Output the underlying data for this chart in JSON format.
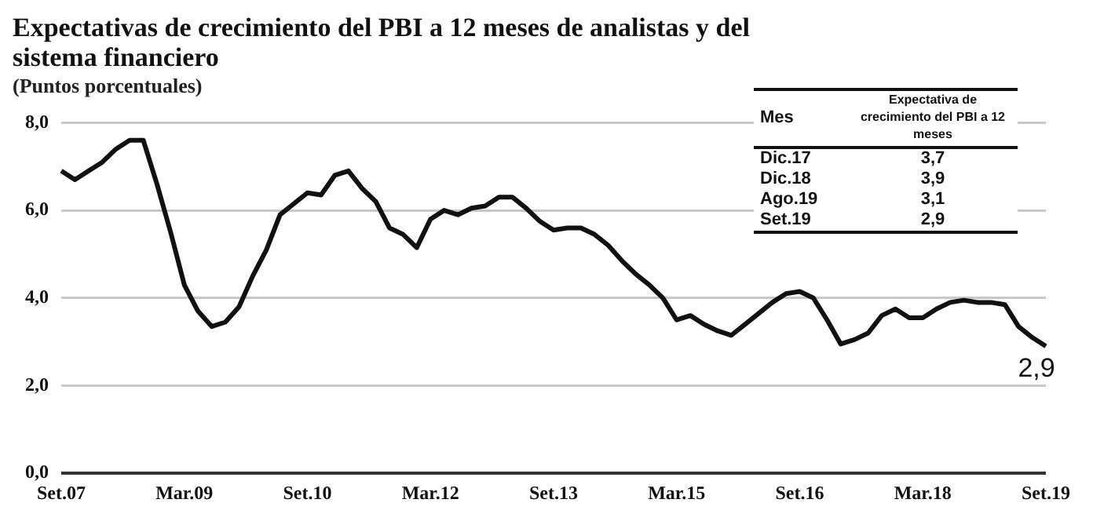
{
  "chart_data": {
    "type": "line",
    "title": "Expectativas de crecimiento del PBI a 12 meses de analistas y del sistema financiero",
    "subtitle": "(Puntos porcentuales)",
    "categories": [
      "Set.07",
      null,
      null,
      null,
      null,
      null,
      null,
      null,
      null,
      "Mar.09",
      null,
      null,
      null,
      null,
      null,
      null,
      null,
      null,
      "Set.10",
      null,
      null,
      null,
      null,
      null,
      null,
      null,
      null,
      "Mar.12",
      null,
      null,
      null,
      null,
      null,
      null,
      null,
      null,
      "Set.13",
      null,
      null,
      null,
      null,
      null,
      null,
      null,
      null,
      "Mar.15",
      null,
      null,
      null,
      null,
      null,
      null,
      null,
      null,
      "Set.16",
      null,
      null,
      null,
      null,
      null,
      null,
      null,
      null,
      "Mar.18",
      null,
      null,
      null,
      null,
      null,
      null,
      null,
      null,
      "Set.19"
    ],
    "series": [
      {
        "color": "#111111",
        "values": [
          6.9,
          6.7,
          6.9,
          7.1,
          7.4,
          7.6,
          7.6,
          6.6,
          5.5,
          4.3,
          3.7,
          3.35,
          3.45,
          3.8,
          4.5,
          5.1,
          5.9,
          6.15,
          6.4,
          6.35,
          6.8,
          6.9,
          6.5,
          6.2,
          5.6,
          5.45,
          5.15,
          5.8,
          6.0,
          5.9,
          6.05,
          6.1,
          6.3,
          6.3,
          6.05,
          5.75,
          5.55,
          5.6,
          5.6,
          5.45,
          5.2,
          4.85,
          4.55,
          4.3,
          4.0,
          3.5,
          3.6,
          3.4,
          3.25,
          3.15,
          3.4,
          3.65,
          3.9,
          4.1,
          4.15,
          4.0,
          3.5,
          2.95,
          3.05,
          3.2,
          3.6,
          3.75,
          3.55,
          3.55,
          3.75,
          3.9,
          3.95,
          3.9,
          3.9,
          3.85,
          3.35,
          3.1,
          2.9
        ]
      }
    ],
    "ylim": [
      0,
      8
    ],
    "yticks": [
      {
        "value": 0,
        "label": "0,0"
      },
      {
        "value": 2,
        "label": "2,0"
      },
      {
        "value": 4,
        "label": "4,0"
      },
      {
        "value": 6,
        "label": "6,0"
      },
      {
        "value": 8,
        "label": "8,0"
      }
    ],
    "grid": "y",
    "marker": "none",
    "annotations": [
      "Mes",
      "Expectativa de crecimiento del PBI a 12 meses",
      "Dic.17",
      "3,7",
      "Dic.18",
      "3,9",
      "Ago.19",
      "3,1",
      "Set.19",
      "2,9",
      {
        "text": "2,9",
        "x": "Set.19",
        "y": 2.9
      }
    ]
  }
}
